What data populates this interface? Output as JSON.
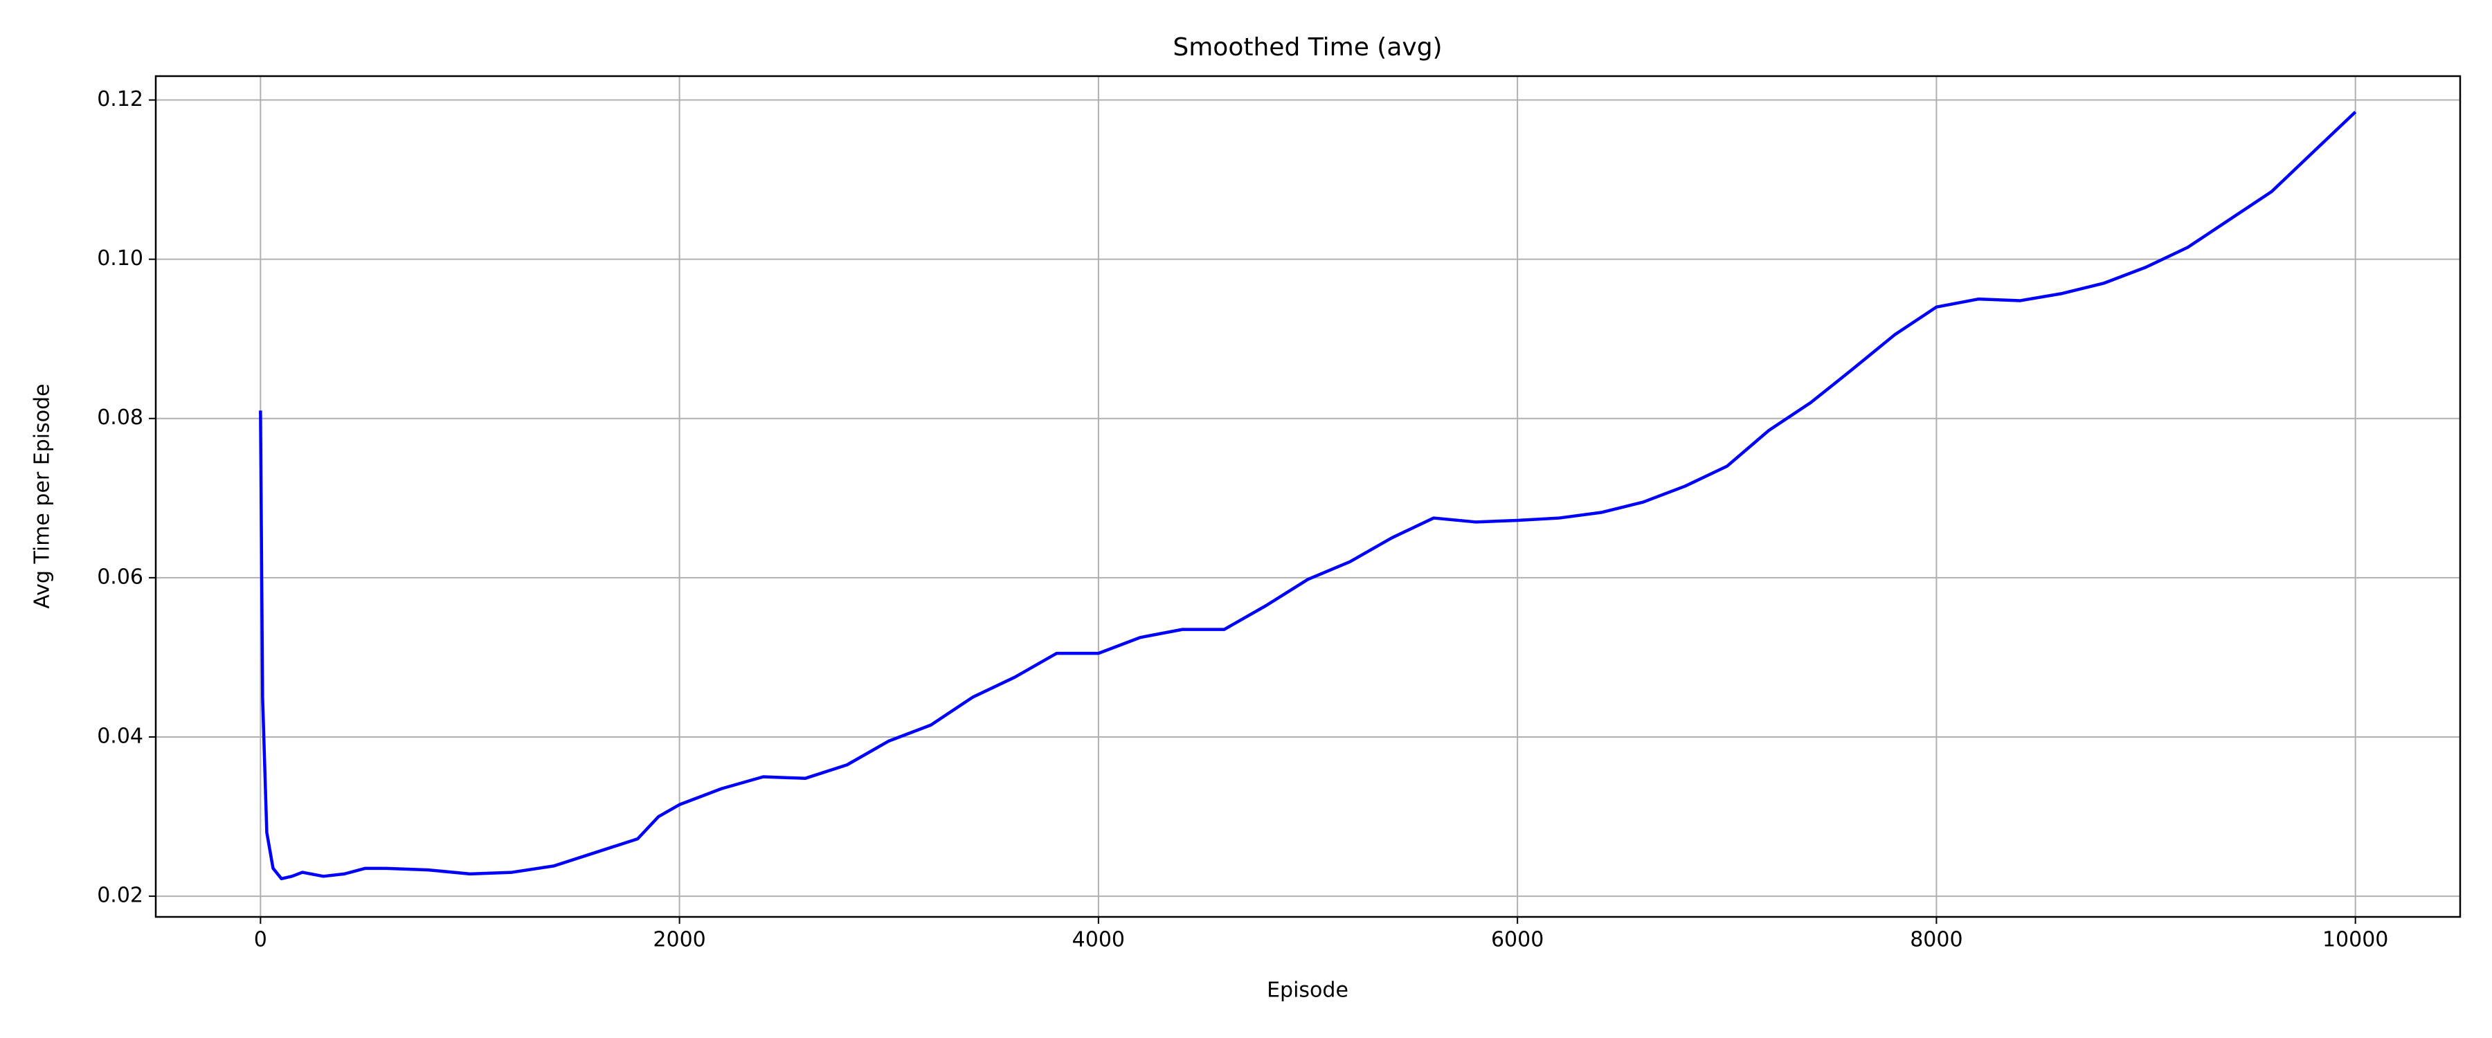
{
  "chart_data": {
    "type": "line",
    "title": "Smoothed Time (avg)",
    "x_label": "Episode",
    "y_label": "Avg Time per Episode",
    "x": [
      0,
      10,
      30,
      60,
      100,
      150,
      200,
      300,
      400,
      500,
      600,
      800,
      1000,
      1200,
      1400,
      1600,
      1800,
      1900,
      2000,
      2200,
      2400,
      2600,
      2800,
      3000,
      3200,
      3400,
      3600,
      3800,
      4000,
      4200,
      4400,
      4600,
      4800,
      5000,
      5200,
      5400,
      5600,
      5800,
      6000,
      6200,
      6400,
      6600,
      6800,
      7000,
      7200,
      7400,
      7600,
      7800,
      8000,
      8200,
      8400,
      8600,
      8800,
      9000,
      9200,
      9400,
      9600,
      9800,
      10000
    ],
    "series": [
      {
        "name": "avg",
        "color": "#0000ff",
        "values": [
          0.081,
          0.045,
          0.028,
          0.0235,
          0.0222,
          0.0225,
          0.023,
          0.0225,
          0.0228,
          0.0235,
          0.0235,
          0.0233,
          0.0228,
          0.023,
          0.0238,
          0.0255,
          0.0272,
          0.03,
          0.0315,
          0.0335,
          0.035,
          0.0348,
          0.0365,
          0.0395,
          0.0415,
          0.045,
          0.0475,
          0.0505,
          0.0505,
          0.0525,
          0.0535,
          0.0535,
          0.0565,
          0.0598,
          0.062,
          0.065,
          0.0675,
          0.067,
          0.0672,
          0.0675,
          0.0682,
          0.0695,
          0.0715,
          0.074,
          0.0785,
          0.082,
          0.0862,
          0.0905,
          0.094,
          0.095,
          0.0948,
          0.0957,
          0.097,
          0.099,
          0.1015,
          0.105,
          0.1085,
          0.1135,
          0.1185
        ]
      }
    ],
    "xlim": [
      -500,
      10500
    ],
    "xticks": [
      0,
      2000,
      4000,
      6000,
      8000,
      10000
    ],
    "ylim": [
      0.0174,
      0.123
    ],
    "yticks": [
      0.02,
      0.04,
      0.06,
      0.08,
      {
        "value": 0.1,
        "label": "0.10"
      },
      0.12
    ],
    "grid": true
  }
}
